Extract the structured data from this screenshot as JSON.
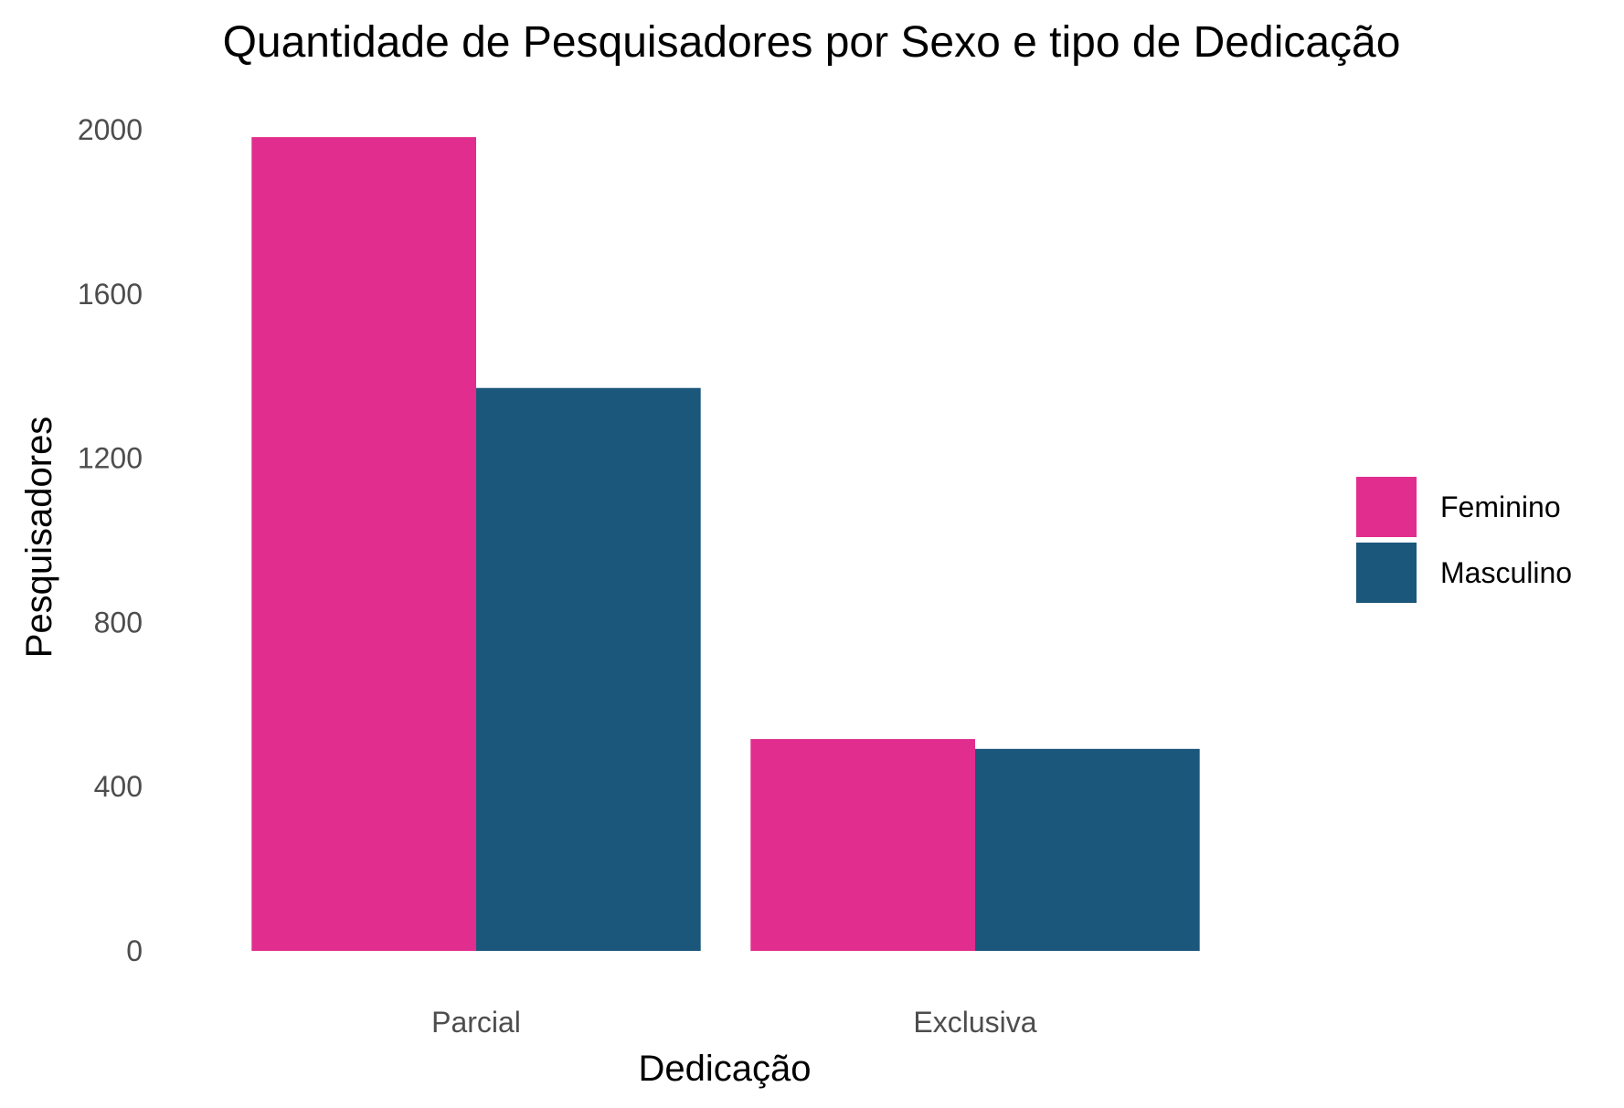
{
  "chart_data": {
    "type": "bar",
    "title": "Quantidade de Pesquisadores por Sexo e tipo de Dedicação",
    "xlabel": "Dedicação",
    "ylabel": "Pesquisadores",
    "categories": [
      "Parcial",
      "Exclusiva"
    ],
    "series": [
      {
        "name": "Feminino",
        "color": "#E12E8E",
        "values": [
          1982,
          516
        ]
      },
      {
        "name": "Masculino",
        "color": "#1B577B",
        "values": [
          1371,
          492
        ]
      }
    ],
    "ylim": [
      0,
      2000
    ],
    "yticks": [
      0,
      400,
      800,
      1200,
      1600,
      2000
    ],
    "ytick_labels": [
      "0",
      "400",
      "800",
      "1200",
      "1600",
      "2000"
    ],
    "grid": false,
    "legend_position": "right"
  }
}
